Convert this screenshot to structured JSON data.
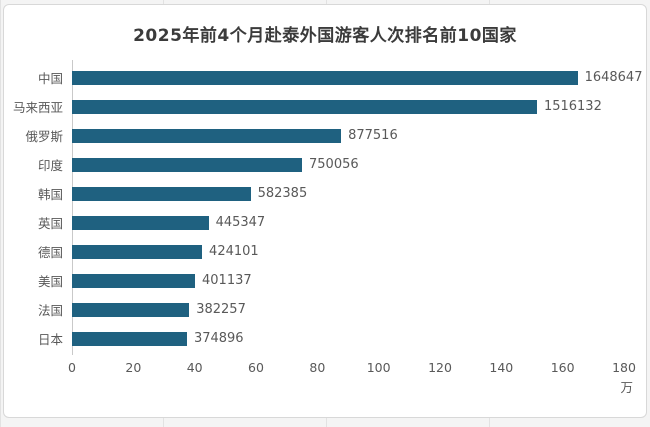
{
  "page": {
    "background_color": "#f4f4f4",
    "card_background": "#ffffff",
    "card_border_color": "#d8d8d8"
  },
  "chart_data": {
    "type": "bar",
    "orientation": "horizontal",
    "title": "2025年前4个月赴泰外国游客人次排名前10国家",
    "categories": [
      "中国",
      "马来西亚",
      "俄罗斯",
      "印度",
      "韩国",
      "英国",
      "德国",
      "美国",
      "法国",
      "日本"
    ],
    "values": [
      1648647,
      1516132,
      877516,
      750056,
      582385,
      445347,
      424101,
      401137,
      382257,
      374896
    ],
    "value_labels": [
      "1648647",
      "1516132",
      "877516",
      "750056",
      "582385",
      "445347",
      "424101",
      "401137",
      "382257",
      "374896"
    ],
    "x_ticks": [
      "0",
      "20",
      "40",
      "60",
      "80",
      "100",
      "120",
      "140",
      "160",
      "180"
    ],
    "x_unit": "万",
    "xlim": [
      0,
      1800000
    ],
    "grid": false,
    "legend": "none",
    "bar_color": "#1f6180",
    "label_color": "#595959",
    "title_color": "#3b3b3b",
    "axis_line_color": "#c9c9c9"
  }
}
